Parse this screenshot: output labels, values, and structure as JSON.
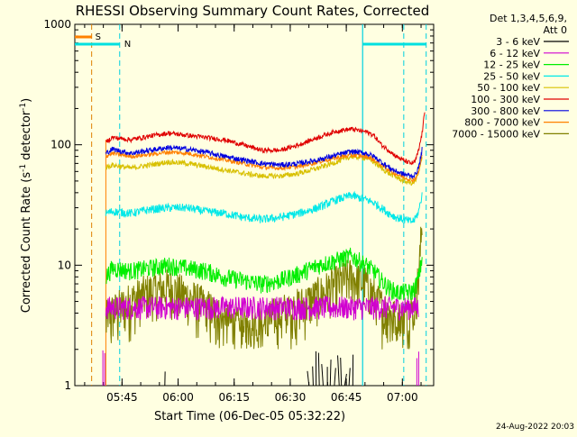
{
  "chart_data": {
    "type": "line",
    "title": "RHESSI Observing Summary Count Rates, Corrected",
    "ylabel_main": "Corrected Count Rate (s",
    "ylabel_sup1": "-1",
    "ylabel_mid": " detector",
    "ylabel_sup2": "-1",
    "ylabel_end": ")",
    "xlabel": "Start Time (06-Dec-05 05:32:22)",
    "footer": "24-Aug-2022 20:03",
    "yscale": "log",
    "ylim": [
      1,
      1000
    ],
    "xlim_minutes": [
      0,
      96
    ],
    "x_ticks": [
      {
        "m": 12.63,
        "label": "05:45"
      },
      {
        "m": 27.63,
        "label": "06:00"
      },
      {
        "m": 42.63,
        "label": "06:15"
      },
      {
        "m": 57.63,
        "label": "06:30"
      },
      {
        "m": 72.63,
        "label": "06:45"
      },
      {
        "m": 87.63,
        "label": "07:00"
      }
    ],
    "y_ticks": [
      {
        "v": 1,
        "label": "1"
      },
      {
        "v": 10,
        "label": "10"
      },
      {
        "v": 100,
        "label": "100"
      },
      {
        "v": 1000,
        "label": "1000"
      }
    ],
    "legend_header": [
      "Det 1,3,4,5,6,9,",
      "Att 0"
    ],
    "series": [
      {
        "name": "3 - 6 keV",
        "color": "#000000"
      },
      {
        "name": "6 - 12 keV",
        "color": "#d000d0"
      },
      {
        "name": "12 - 25 keV",
        "color": "#00ee00"
      },
      {
        "name": "25 - 50 keV",
        "color": "#00e8e8"
      },
      {
        "name": "50 - 100 keV",
        "color": "#d8c000"
      },
      {
        "name": "100 - 300 keV",
        "color": "#e00000"
      },
      {
        "name": "300 - 800 keV",
        "color": "#0000e0"
      },
      {
        "name": "800 - 7000 keV",
        "color": "#ff8000"
      },
      {
        "name": "7000 - 15000 keV",
        "color": "#808000"
      }
    ],
    "profiles": {
      "red": [
        [
          8.3,
          105
        ],
        [
          10,
          115
        ],
        [
          15,
          110
        ],
        [
          20,
          118
        ],
        [
          25,
          125
        ],
        [
          30,
          120
        ],
        [
          35,
          115
        ],
        [
          40,
          110
        ],
        [
          45,
          100
        ],
        [
          50,
          90
        ],
        [
          55,
          90
        ],
        [
          60,
          100
        ],
        [
          65,
          115
        ],
        [
          70,
          130
        ],
        [
          74,
          135
        ],
        [
          78,
          128
        ],
        [
          80,
          120
        ],
        [
          82,
          100
        ],
        [
          84,
          90
        ],
        [
          86,
          80
        ],
        [
          88,
          74
        ],
        [
          90,
          70
        ],
        [
          91,
          72
        ],
        [
          92,
          90
        ],
        [
          93,
          130
        ],
        [
          93.7,
          200
        ]
      ],
      "blue": [
        [
          8.3,
          85
        ],
        [
          10,
          92
        ],
        [
          15,
          85
        ],
        [
          20,
          90
        ],
        [
          25,
          95
        ],
        [
          30,
          92
        ],
        [
          35,
          87
        ],
        [
          40,
          80
        ],
        [
          45,
          75
        ],
        [
          50,
          70
        ],
        [
          55,
          68
        ],
        [
          60,
          70
        ],
        [
          65,
          75
        ],
        [
          70,
          82
        ],
        [
          74,
          88
        ],
        [
          78,
          85
        ],
        [
          80,
          80
        ],
        [
          82,
          72
        ],
        [
          84,
          65
        ],
        [
          86,
          60
        ],
        [
          88,
          57
        ],
        [
          90,
          55
        ],
        [
          91,
          56
        ],
        [
          92,
          65
        ],
        [
          93,
          95
        ]
      ],
      "orange": [
        [
          8.3,
          80
        ],
        [
          10,
          85
        ],
        [
          15,
          80
        ],
        [
          20,
          83
        ],
        [
          25,
          87
        ],
        [
          30,
          85
        ],
        [
          35,
          80
        ],
        [
          40,
          75
        ],
        [
          45,
          70
        ],
        [
          50,
          65
        ],
        [
          55,
          64
        ],
        [
          60,
          66
        ],
        [
          65,
          72
        ],
        [
          70,
          78
        ],
        [
          74,
          82
        ],
        [
          78,
          80
        ],
        [
          80,
          75
        ],
        [
          82,
          68
        ],
        [
          84,
          62
        ],
        [
          86,
          57
        ],
        [
          88,
          54
        ],
        [
          90,
          51
        ],
        [
          91,
          52
        ],
        [
          92,
          60
        ],
        [
          93,
          85
        ]
      ],
      "yellow": [
        [
          8.3,
          65
        ],
        [
          10,
          68
        ],
        [
          15,
          64
        ],
        [
          20,
          68
        ],
        [
          25,
          72
        ],
        [
          30,
          70
        ],
        [
          35,
          66
        ],
        [
          40,
          62
        ],
        [
          45,
          58
        ],
        [
          50,
          55
        ],
        [
          55,
          55
        ],
        [
          60,
          58
        ],
        [
          65,
          64
        ],
        [
          70,
          72
        ],
        [
          74,
          80
        ],
        [
          78,
          78
        ],
        [
          80,
          72
        ],
        [
          82,
          64
        ],
        [
          84,
          58
        ],
        [
          86,
          54
        ],
        [
          88,
          50
        ],
        [
          90,
          48
        ],
        [
          91,
          49
        ],
        [
          92,
          58
        ],
        [
          93,
          80
        ]
      ],
      "cyan": [
        [
          8.3,
          27
        ],
        [
          10,
          28
        ],
        [
          15,
          27
        ],
        [
          20,
          29
        ],
        [
          25,
          30
        ],
        [
          30,
          30
        ],
        [
          35,
          28
        ],
        [
          40,
          27
        ],
        [
          45,
          25
        ],
        [
          50,
          24
        ],
        [
          55,
          25
        ],
        [
          60,
          27
        ],
        [
          65,
          30
        ],
        [
          70,
          35
        ],
        [
          74,
          38
        ],
        [
          78,
          35
        ],
        [
          80,
          33
        ],
        [
          82,
          30
        ],
        [
          84,
          27
        ],
        [
          86,
          25
        ],
        [
          88,
          24
        ],
        [
          90,
          23
        ],
        [
          91,
          24
        ],
        [
          92,
          28
        ],
        [
          93,
          40
        ]
      ],
      "green": [
        [
          8.3,
          8
        ],
        [
          10,
          9.5
        ],
        [
          15,
          9
        ],
        [
          20,
          9.5
        ],
        [
          25,
          10
        ],
        [
          30,
          9.5
        ],
        [
          35,
          9
        ],
        [
          40,
          8
        ],
        [
          45,
          7.5
        ],
        [
          50,
          7
        ],
        [
          55,
          7.5
        ],
        [
          60,
          8.5
        ],
        [
          65,
          10
        ],
        [
          70,
          11
        ],
        [
          74,
          12
        ],
        [
          78,
          10
        ],
        [
          80,
          9
        ],
        [
          82,
          7.5
        ],
        [
          84,
          6.5
        ],
        [
          86,
          6
        ],
        [
          88,
          6
        ],
        [
          90,
          6
        ],
        [
          91,
          6.5
        ],
        [
          92,
          8
        ],
        [
          93,
          12
        ]
      ],
      "magenta": [
        [
          8.3,
          4.5
        ],
        [
          20,
          4.5
        ],
        [
          35,
          4.5
        ],
        [
          50,
          4.5
        ],
        [
          65,
          4.5
        ],
        [
          80,
          4.5
        ],
        [
          92,
          4.5
        ]
      ],
      "olive": [
        [
          8.3,
          3.5
        ],
        [
          10,
          4
        ],
        [
          15,
          5
        ],
        [
          20,
          6
        ],
        [
          25,
          6.5
        ],
        [
          30,
          5.5
        ],
        [
          35,
          4.5
        ],
        [
          40,
          3.5
        ],
        [
          45,
          3
        ],
        [
          50,
          3.2
        ],
        [
          55,
          4
        ],
        [
          60,
          4.5
        ],
        [
          65,
          5.5
        ],
        [
          70,
          7
        ],
        [
          74,
          8
        ],
        [
          78,
          7
        ],
        [
          80,
          5.5
        ],
        [
          82,
          4.5
        ],
        [
          84,
          4
        ],
        [
          86,
          3.5
        ],
        [
          88,
          3.5
        ],
        [
          90,
          4
        ],
        [
          91,
          5
        ],
        [
          92,
          8
        ],
        [
          93,
          25
        ]
      ]
    },
    "annotations": {
      "S_label": "S",
      "N_label": "N",
      "orange_dashed_minute": 4.5,
      "cyan_dashed_minutes": [
        12.0,
        88.0
      ],
      "cyan_solid_minute": 77.0,
      "cyan_right_dashed_minute": 94.0
    },
    "grid": false
  }
}
